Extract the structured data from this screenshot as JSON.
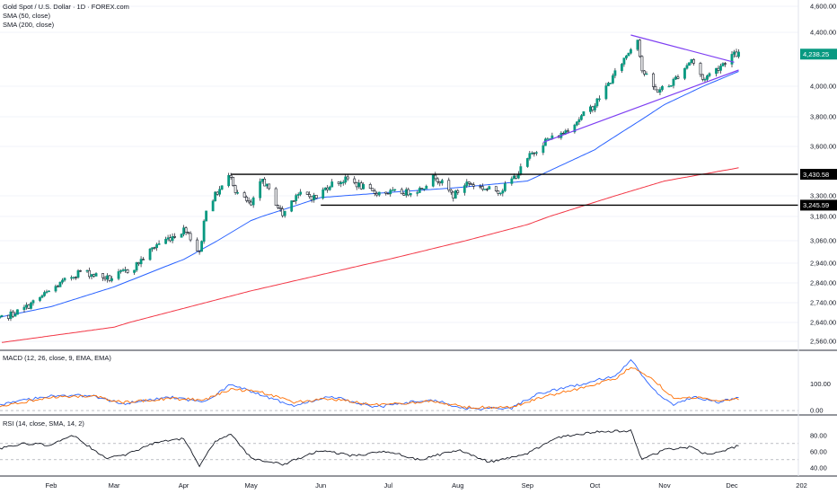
{
  "chart_data": [
    {
      "type": "candlestick",
      "title": "Gold Spot / U.S. Dollar · 1D · FOREX.com",
      "indicators": [
        "SMA (50, close)",
        "SMA (200, close)"
      ],
      "y_ticks": [
        "4,600.00",
        "4,400.00",
        "4,000.00",
        "3,800.00",
        "3,600.00",
        "3,300.00",
        "3,180.00",
        "3,060.00",
        "2,940.00",
        "2,840.00",
        "2,740.00",
        "2,640.00",
        "2,560.00"
      ],
      "x_ticks": [
        "Feb",
        "Mar",
        "Apr",
        "May",
        "Jun",
        "Jul",
        "Aug",
        "Sep",
        "Oct",
        "Nov",
        "Dec",
        "202"
      ],
      "last_price": "4,238.25",
      "horizontal_levels": [
        {
          "label": "3,430.58",
          "value": 3430.58
        },
        {
          "label": "3,245.59",
          "value": 3245.59
        }
      ],
      "trendlines": [
        {
          "name": "upper",
          "from": {
            "x": "2025-10-17",
            "y": 4380
          },
          "to": {
            "x": "2025-12-02",
            "y": 4178
          }
        },
        {
          "name": "lower",
          "from": {
            "x": "2025-09-08",
            "y": 3628
          },
          "to": {
            "x": "2025-12-04",
            "y": 4120
          }
        }
      ],
      "price_anchors": {
        "x": [
          "2025-01-06",
          "2025-01-20",
          "2025-02-03",
          "2025-02-14",
          "2025-02-27",
          "2025-03-10",
          "2025-03-20",
          "2025-04-02",
          "2025-04-08",
          "2025-04-11",
          "2025-04-22",
          "2025-04-24",
          "2025-05-01",
          "2025-05-06",
          "2025-05-15",
          "2025-05-21",
          "2025-05-30",
          "2025-06-05",
          "2025-06-13",
          "2025-06-24",
          "2025-07-01",
          "2025-07-09",
          "2025-07-15",
          "2025-07-22",
          "2025-07-30",
          "2025-08-05",
          "2025-08-14",
          "2025-08-20",
          "2025-08-28",
          "2025-09-02",
          "2025-09-09",
          "2025-09-16",
          "2025-09-22",
          "2025-10-01",
          "2025-10-08",
          "2025-10-15",
          "2025-10-20",
          "2025-10-22",
          "2025-10-28",
          "2025-11-03",
          "2025-11-13",
          "2025-11-18",
          "2025-11-25",
          "2025-12-01",
          "2025-12-04"
        ],
        "y": [
          2640,
          2710,
          2820,
          2900,
          2860,
          2920,
          3040,
          3120,
          2990,
          3230,
          3430,
          3330,
          3240,
          3400,
          3190,
          3310,
          3290,
          3370,
          3400,
          3320,
          3320,
          3320,
          3340,
          3420,
          3300,
          3380,
          3340,
          3330,
          3440,
          3540,
          3640,
          3680,
          3760,
          3880,
          4040,
          4230,
          4360,
          4120,
          3970,
          4000,
          4200,
          4050,
          4140,
          4230,
          4238
        ]
      },
      "sma50": {
        "x": [
          "2025-01-06",
          "2025-02-01",
          "2025-03-01",
          "2025-04-01",
          "2025-05-01",
          "2025-06-01",
          "2025-07-01",
          "2025-08-01",
          "2025-09-01",
          "2025-10-01",
          "2025-11-01",
          "2025-12-04"
        ],
        "y": [
          2660,
          2720,
          2820,
          2960,
          3160,
          3290,
          3320,
          3350,
          3390,
          3580,
          3880,
          4110
        ]
      },
      "sma200": {
        "x": [
          "2025-01-10",
          "2025-03-01",
          "2025-05-01",
          "2025-07-01",
          "2025-09-01",
          "2025-11-01",
          "2025-12-04"
        ],
        "y": [
          2555,
          2620,
          2800,
          2960,
          3140,
          3390,
          3470
        ]
      }
    },
    {
      "type": "line",
      "title": "MACD (12, 26, close, 9, EMA, EMA)",
      "y_ticks": [
        "100.00",
        "0.00"
      ],
      "series": [
        {
          "name": "MACD",
          "color": "#2962ff",
          "x": [
            "2025-01-06",
            "2025-02-01",
            "2025-02-20",
            "2025-03-05",
            "2025-03-25",
            "2025-04-10",
            "2025-04-22",
            "2025-05-05",
            "2025-05-20",
            "2025-06-05",
            "2025-06-25",
            "2025-07-20",
            "2025-08-05",
            "2025-08-25",
            "2025-09-05",
            "2025-09-25",
            "2025-10-10",
            "2025-10-17",
            "2025-10-28",
            "2025-11-05",
            "2025-11-15",
            "2025-11-25",
            "2025-12-04"
          ],
          "y": [
            15,
            58,
            55,
            25,
            52,
            30,
            98,
            60,
            18,
            55,
            12,
            42,
            6,
            10,
            60,
            100,
            130,
            190,
            70,
            22,
            52,
            30,
            50
          ]
        },
        {
          "name": "Signal",
          "color": "#ff6d00",
          "x": [
            "2025-01-06",
            "2025-02-01",
            "2025-02-20",
            "2025-03-05",
            "2025-03-25",
            "2025-04-10",
            "2025-04-22",
            "2025-05-05",
            "2025-05-20",
            "2025-06-05",
            "2025-06-25",
            "2025-07-20",
            "2025-08-05",
            "2025-08-25",
            "2025-09-05",
            "2025-09-25",
            "2025-10-10",
            "2025-10-17",
            "2025-10-28",
            "2025-11-05",
            "2025-11-15",
            "2025-11-25",
            "2025-12-04"
          ],
          "y": [
            12,
            50,
            55,
            30,
            45,
            40,
            80,
            70,
            30,
            45,
            20,
            35,
            12,
            12,
            45,
            85,
            120,
            165,
            110,
            45,
            50,
            35,
            45
          ]
        }
      ]
    },
    {
      "type": "line",
      "title": "RSI (14, close, SMA, 14, 2)",
      "y_ticks": [
        "80.00",
        "60.00",
        "40.00"
      ],
      "series": [
        {
          "name": "RSI",
          "color": "#131722",
          "x": [
            "2025-01-06",
            "2025-01-20",
            "2025-02-01",
            "2025-02-11",
            "2025-02-25",
            "2025-03-05",
            "2025-03-20",
            "2025-04-01",
            "2025-04-08",
            "2025-04-15",
            "2025-04-22",
            "2025-05-01",
            "2025-05-15",
            "2025-06-01",
            "2025-06-15",
            "2025-07-01",
            "2025-07-15",
            "2025-08-01",
            "2025-08-15",
            "2025-09-01",
            "2025-09-15",
            "2025-10-01",
            "2025-10-17",
            "2025-10-22",
            "2025-11-01",
            "2025-11-13",
            "2025-11-20",
            "2025-12-04"
          ],
          "y": [
            62,
            70,
            68,
            80,
            52,
            55,
            72,
            76,
            42,
            73,
            82,
            52,
            44,
            62,
            55,
            60,
            50,
            62,
            47,
            58,
            78,
            84,
            86,
            50,
            62,
            66,
            56,
            67
          ]
        }
      ]
    }
  ]
}
